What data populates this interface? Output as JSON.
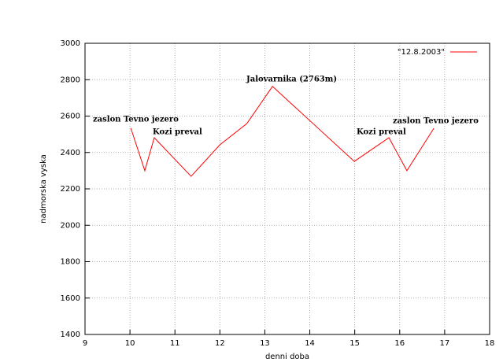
{
  "chart_data": {
    "type": "line",
    "xlabel": "denni doba",
    "ylabel": "nadmorska vyska",
    "xlim": [
      9,
      18
    ],
    "ylim": [
      1400,
      3000
    ],
    "xticks": [
      9,
      10,
      11,
      12,
      13,
      14,
      15,
      16,
      17,
      18
    ],
    "yticks": [
      1400,
      1600,
      1800,
      2000,
      2200,
      2400,
      2600,
      2800,
      3000
    ],
    "grid": true,
    "legend": "upper right",
    "series": [
      {
        "name": "\"12.8.2003\"",
        "color": "#ff0000",
        "x": [
          10.02,
          10.33,
          10.54,
          11.36,
          12.0,
          12.6,
          13.17,
          14.99,
          15.76,
          16.16,
          16.76
        ],
        "values": [
          2533,
          2300,
          2481,
          2269,
          2442,
          2559,
          2763,
          2351,
          2481,
          2300,
          2533
        ]
      }
    ],
    "annotations": [
      "zaslon Tevno jezero",
      "Kozi preval",
      "Jalovarnika (2763m)",
      "Kozi preval",
      "zaslon Tevno jezero"
    ]
  }
}
